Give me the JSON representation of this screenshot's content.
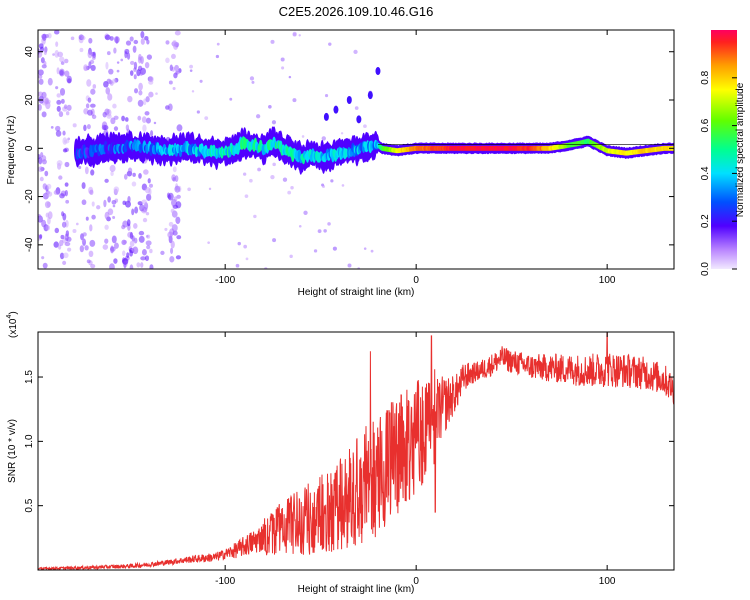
{
  "title": "C2E5.2026.109.10.46.G16",
  "chart_data": [
    {
      "type": "heatmap",
      "xlabel": "Height of straight line (km)",
      "ylabel": "Frequency (Hz)",
      "xlim": [
        -198,
        135
      ],
      "ylim": [
        -50,
        49
      ],
      "xticks": [
        -100,
        0,
        100
      ],
      "yticks": [
        -40,
        -20,
        0,
        20,
        40
      ],
      "colorbar": {
        "label": "Normalized spectral amplitude",
        "range": [
          0,
          1
        ],
        "ticks": [
          0.0,
          0.2,
          0.4,
          0.6,
          0.8
        ],
        "tick_labels": [
          "0.0",
          "0.2",
          "0.4",
          "0.6",
          "0.8"
        ]
      },
      "band_center_hz": [
        [
          -178,
          -2
        ],
        [
          -170,
          -1
        ],
        [
          -160,
          0
        ],
        [
          -150,
          1
        ],
        [
          -140,
          0
        ],
        [
          -130,
          -1
        ],
        [
          -120,
          0
        ],
        [
          -110,
          -1
        ],
        [
          -100,
          -2
        ],
        [
          -95,
          0
        ],
        [
          -90,
          2
        ],
        [
          -85,
          1
        ],
        [
          -80,
          0
        ],
        [
          -75,
          2
        ],
        [
          -70,
          0
        ],
        [
          -65,
          -2
        ],
        [
          -60,
          -4
        ],
        [
          -55,
          -3
        ],
        [
          -50,
          -4
        ],
        [
          -45,
          -3
        ],
        [
          -40,
          -2
        ],
        [
          -35,
          -1
        ],
        [
          -30,
          0
        ],
        [
          -25,
          1
        ],
        [
          -21,
          2
        ],
        [
          -18,
          0
        ],
        [
          -10,
          -1
        ],
        [
          0,
          0
        ],
        [
          10,
          0
        ],
        [
          20,
          0
        ],
        [
          40,
          0
        ],
        [
          60,
          0
        ],
        [
          70,
          0
        ],
        [
          78,
          1
        ],
        [
          85,
          2
        ],
        [
          90,
          3
        ],
        [
          95,
          1
        ],
        [
          100,
          -1
        ],
        [
          110,
          -2
        ],
        [
          120,
          -1
        ],
        [
          130,
          0
        ],
        [
          135,
          0
        ]
      ],
      "band_amplitude": [
        [
          -178,
          0.18
        ],
        [
          -160,
          0.22
        ],
        [
          -140,
          0.28
        ],
        [
          -120,
          0.32
        ],
        [
          -100,
          0.38
        ],
        [
          -90,
          0.45
        ],
        [
          -80,
          0.4
        ],
        [
          -70,
          0.42
        ],
        [
          -60,
          0.38
        ],
        [
          -50,
          0.36
        ],
        [
          -40,
          0.33
        ],
        [
          -30,
          0.3
        ],
        [
          -21,
          0.3
        ],
        [
          -18,
          0.55
        ],
        [
          -10,
          0.75
        ],
        [
          0,
          0.88
        ],
        [
          10,
          0.92
        ],
        [
          20,
          0.97
        ],
        [
          40,
          0.98
        ],
        [
          60,
          0.95
        ],
        [
          70,
          0.8
        ],
        [
          80,
          0.6
        ],
        [
          90,
          0.55
        ],
        [
          100,
          0.72
        ],
        [
          120,
          0.8
        ],
        [
          135,
          0.78
        ]
      ],
      "scatter_columns_km": [
        -195,
        -185,
        -172,
        -160,
        -150,
        -142,
        -127
      ],
      "harmonics": [
        {
          "x": [
            -20,
            -24,
            -30
          ],
          "y": [
            32,
            22,
            12
          ]
        },
        {
          "x": [
            -35,
            -42,
            -47
          ],
          "y": [
            20,
            16,
            13
          ]
        }
      ]
    },
    {
      "type": "line",
      "xlabel": "Height of straight line (km)",
      "ylabel": "SNR (10 * v/v)",
      "y_scale_label": "(x10",
      "y_scale_exponent": "4",
      "xlim": [
        -198,
        135
      ],
      "ylim": [
        0,
        1.85
      ],
      "xticks": [
        -100,
        0,
        100
      ],
      "yticks": [
        0.5,
        1.0,
        1.5
      ],
      "ytick_labels": [
        "0.5",
        "1.0",
        "1.5"
      ],
      "series": [
        {
          "name": "SNR",
          "color": "#e8302e",
          "mean": [
            [
              -198,
              0.01
            ],
            [
              -170,
              0.02
            ],
            [
              -150,
              0.03
            ],
            [
              -135,
              0.05
            ],
            [
              -120,
              0.08
            ],
            [
              -105,
              0.1
            ],
            [
              -95,
              0.15
            ],
            [
              -85,
              0.22
            ],
            [
              -75,
              0.3
            ],
            [
              -65,
              0.36
            ],
            [
              -55,
              0.4
            ],
            [
              -45,
              0.45
            ],
            [
              -35,
              0.55
            ],
            [
              -25,
              0.7
            ],
            [
              -15,
              0.8
            ],
            [
              -8,
              0.9
            ],
            [
              -2,
              1.0
            ],
            [
              4,
              1.1
            ],
            [
              10,
              1.2
            ],
            [
              16,
              1.3
            ],
            [
              22,
              1.4
            ],
            [
              25,
              1.5
            ],
            [
              30,
              1.53
            ],
            [
              35,
              1.56
            ],
            [
              40,
              1.6
            ],
            [
              45,
              1.65
            ],
            [
              50,
              1.62
            ],
            [
              60,
              1.58
            ],
            [
              70,
              1.57
            ],
            [
              80,
              1.56
            ],
            [
              90,
              1.55
            ],
            [
              100,
              1.56
            ],
            [
              110,
              1.55
            ],
            [
              120,
              1.53
            ],
            [
              130,
              1.48
            ],
            [
              135,
              1.4
            ]
          ],
          "noise_amplitude": [
            [
              -198,
              0.008
            ],
            [
              -130,
              0.02
            ],
            [
              -100,
              0.04
            ],
            [
              -80,
              0.12
            ],
            [
              -60,
              0.2
            ],
            [
              -40,
              0.28
            ],
            [
              -20,
              0.38
            ],
            [
              0,
              0.35
            ],
            [
              10,
              0.3
            ],
            [
              20,
              0.15
            ],
            [
              30,
              0.08
            ],
            [
              60,
              0.1
            ],
            [
              100,
              0.14
            ],
            [
              135,
              0.12
            ]
          ],
          "peaks": [
            [
              -24,
              1.7
            ],
            [
              8,
              1.82
            ],
            [
              10,
              0.45
            ],
            [
              100,
              1.84
            ]
          ]
        }
      ]
    }
  ]
}
